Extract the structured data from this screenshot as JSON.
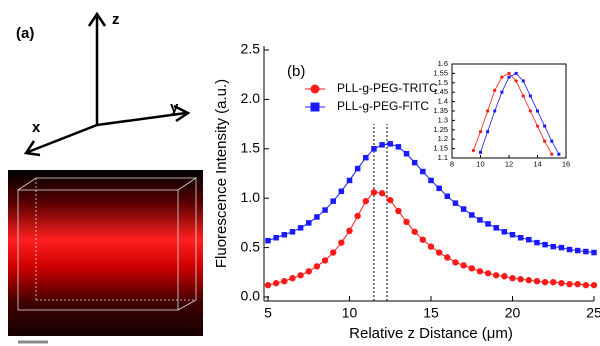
{
  "panel_a": {
    "label": "(a)",
    "axis_x": "x",
    "axis_y": "y",
    "axis_z": "z"
  },
  "chart_data": [
    {
      "type": "line",
      "label": "(b)",
      "x_label": "Relative z Distance (μm)",
      "y_label": "Fluorescence Intensity (a.u.)",
      "x": [
        5,
        5.5,
        6,
        6.5,
        7,
        7.5,
        8,
        8.5,
        9,
        9.5,
        10,
        10.5,
        11,
        11.5,
        12,
        12.5,
        13,
        13.5,
        14,
        14.5,
        15,
        15.5,
        16,
        16.5,
        17,
        17.5,
        18,
        18.5,
        19,
        19.5,
        20,
        20.5,
        21,
        21.5,
        22,
        22.5,
        23,
        23.5,
        24,
        24.5,
        25
      ],
      "series": [
        {
          "name": "PLL-g-PEG-TRITC",
          "color": "#ff1a1a",
          "marker": "circle",
          "values": [
            0.12,
            0.14,
            0.16,
            0.19,
            0.22,
            0.26,
            0.31,
            0.37,
            0.45,
            0.55,
            0.67,
            0.82,
            0.97,
            1.06,
            1.05,
            0.98,
            0.87,
            0.76,
            0.66,
            0.58,
            0.51,
            0.45,
            0.4,
            0.35,
            0.32,
            0.29,
            0.26,
            0.24,
            0.22,
            0.21,
            0.19,
            0.18,
            0.17,
            0.16,
            0.15,
            0.15,
            0.14,
            0.13,
            0.13,
            0.12,
            0.12
          ]
        },
        {
          "name": "PLL-g-PEG-FITC",
          "color": "#1a1aff",
          "marker": "square",
          "values": [
            0.57,
            0.6,
            0.63,
            0.66,
            0.7,
            0.75,
            0.81,
            0.88,
            0.97,
            1.07,
            1.18,
            1.3,
            1.41,
            1.5,
            1.54,
            1.55,
            1.52,
            1.45,
            1.36,
            1.27,
            1.18,
            1.1,
            1.02,
            0.95,
            0.89,
            0.83,
            0.78,
            0.74,
            0.7,
            0.66,
            0.63,
            0.6,
            0.58,
            0.55,
            0.53,
            0.51,
            0.5,
            0.48,
            0.47,
            0.46,
            0.45
          ]
        }
      ],
      "vlines": [
        11.5,
        12.3
      ],
      "xlim": [
        5,
        25
      ],
      "xticks": [
        5,
        10,
        15,
        20,
        25
      ],
      "ylim": [
        0,
        2.5
      ],
      "yticks": [
        {
          "value": 0,
          "label": "0.0"
        },
        0.5,
        {
          "value": 1,
          "label": "1.0"
        },
        1.5,
        {
          "value": 2,
          "label": "2.0"
        },
        2.5
      ]
    },
    {
      "type": "line",
      "x": [
        9.5,
        10,
        10.5,
        11,
        11.5,
        12,
        12.5,
        13,
        13.5,
        14,
        14.5,
        15,
        15.5
      ],
      "series": [
        {
          "color": "#ff1a1a",
          "marker": "circle",
          "values": [
            1.14,
            1.24,
            1.35,
            1.46,
            1.53,
            1.55,
            1.51,
            1.43,
            1.35,
            1.27,
            1.19,
            1.12,
            null
          ]
        },
        {
          "color": "#1a1aff",
          "marker": "square",
          "values": [
            null,
            1.13,
            1.24,
            1.35,
            1.45,
            1.53,
            1.55,
            1.51,
            1.43,
            1.35,
            1.27,
            1.19,
            1.12
          ]
        }
      ],
      "xlim": [
        8,
        16
      ],
      "xticks": [
        8,
        10,
        12,
        14,
        16
      ],
      "ylim": [
        1.1,
        1.6
      ],
      "yticks": [
        1.1,
        1.15,
        1.2,
        1.25,
        1.3,
        1.35,
        1.4,
        1.45,
        1.5,
        1.55,
        1.6
      ]
    }
  ]
}
